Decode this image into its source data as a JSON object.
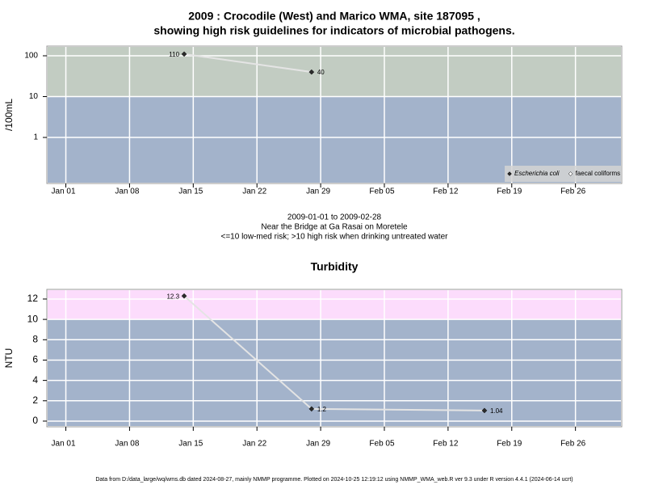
{
  "chart_data": [
    {
      "type": "line",
      "title": "2009 : Crocodile (West) and Marico WMA, site 187095 ,",
      "subtitle": "showing high risk guidelines for indicators of microbial pathogens.",
      "ylabel": "/100mL",
      "log_scale": true,
      "threshold": 10,
      "below_color": "#a3b3cb",
      "above_color": "#c2ccc2",
      "legend": "lower right",
      "x": [
        "2009-01-14",
        "2009-01-28"
      ],
      "series": [
        {
          "name": "Escherichia coli",
          "color": "#2b2b2b",
          "line_color": "#e4e4e4",
          "values": [
            110,
            40
          ],
          "value_labels": [
            "110",
            "40"
          ]
        },
        {
          "name": "faecal coliforms",
          "color": "#ffffff",
          "line_color": "#e4e4e4",
          "values": [
            null,
            null
          ]
        }
      ],
      "xlim": [
        "2008-12-30",
        "2009-03-03"
      ],
      "xticks": [
        {
          "value": "2009-01-01",
          "label": "Jan 01"
        },
        {
          "value": "2009-01-08",
          "label": "Jan 08"
        },
        {
          "value": "2009-01-15",
          "label": "Jan 15"
        },
        {
          "value": "2009-01-22",
          "label": "Jan 22"
        },
        {
          "value": "2009-01-29",
          "label": "Jan 29"
        },
        {
          "value": "2009-02-05",
          "label": "Feb 05"
        },
        {
          "value": "2009-02-12",
          "label": "Feb 12"
        },
        {
          "value": "2009-02-19",
          "label": "Feb 19"
        },
        {
          "value": "2009-02-26",
          "label": "Feb 26"
        }
      ],
      "ylim": [
        0.078,
        165
      ],
      "yticks": [
        1,
        10,
        100
      ],
      "grid": true,
      "notes": [
        "2009-01-01 to 2009-02-28",
        "Near the Bridge at Ga Rasai on Moretele",
        "<=10 low-med risk; >10 high risk when drinking untreated water"
      ]
    },
    {
      "type": "line",
      "title": "Turbidity",
      "ylabel": "NTU",
      "log_scale": false,
      "threshold": 10,
      "below_color": "#a3b3cb",
      "above_color": "#fcdcfc",
      "x": [
        "2009-01-14",
        "2009-01-28",
        "2009-02-16"
      ],
      "series": [
        {
          "color": "#2b2b2b",
          "line_color": "#e4e4e4",
          "values": [
            12.3,
            1.2,
            1.04
          ],
          "value_labels": [
            "12.3",
            "1.2",
            "1.04"
          ]
        }
      ],
      "xlim": [
        "2008-12-30",
        "2009-03-03"
      ],
      "xticks": [
        {
          "value": "2009-01-01",
          "label": "Jan 01"
        },
        {
          "value": "2009-01-08",
          "label": "Jan 08"
        },
        {
          "value": "2009-01-15",
          "label": "Jan 15"
        },
        {
          "value": "2009-01-22",
          "label": "Jan 22"
        },
        {
          "value": "2009-01-29",
          "label": "Jan 29"
        },
        {
          "value": "2009-02-05",
          "label": "Feb 05"
        },
        {
          "value": "2009-02-12",
          "label": "Feb 12"
        },
        {
          "value": "2009-02-19",
          "label": "Feb 19"
        },
        {
          "value": "2009-02-26",
          "label": "Feb 26"
        }
      ],
      "ylim": [
        -0.48,
        12.87
      ],
      "yticks": [
        0,
        2,
        4,
        6,
        8,
        10,
        12
      ],
      "grid": true
    }
  ],
  "footer": "Data from D:/data_large/wq/wms.db dated 2024-08-27, mainly NMMP programme. Plotted on 2024-10-25 12:19:12 using NMMP_WMA_web.R ver 9.3 under R version 4.4.1 (2024-06-14 ucrt)"
}
